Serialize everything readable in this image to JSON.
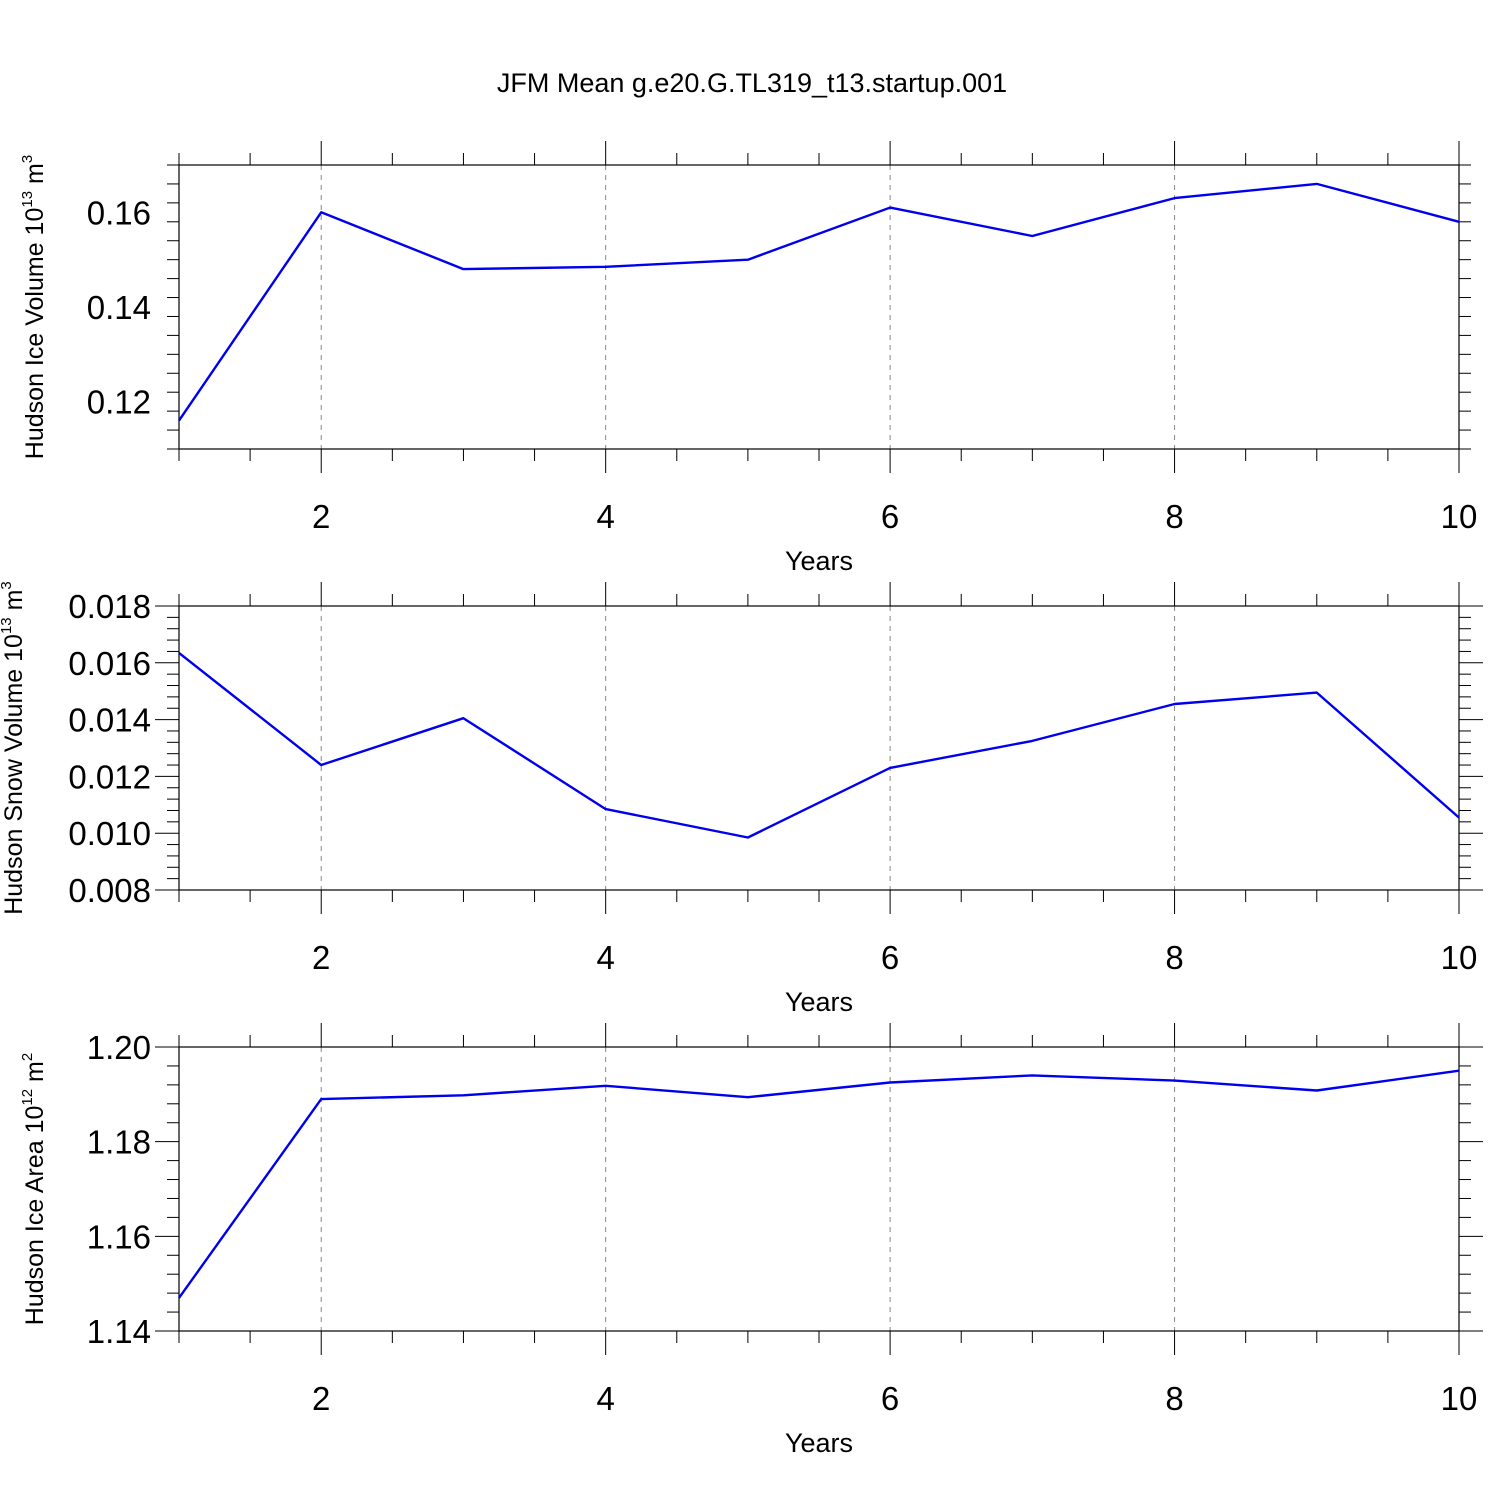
{
  "figure": {
    "title": "JFM Mean g.e20.G.TL319_t13.startup.001",
    "line_color": "#0000ee"
  },
  "chart_data": [
    {
      "type": "line",
      "title": "JFM Mean g.e20.G.TL319_t13.startup.001",
      "xlabel": "Years",
      "ylabel": {
        "base": "Hudson Ice Volume 10",
        "exponent": "13",
        "unit": " m",
        "unit_exp": "3"
      },
      "xlim": [
        1,
        10
      ],
      "ylim": [
        0.11,
        0.17
      ],
      "xticks": [
        2,
        4,
        6,
        8,
        10
      ],
      "xtick_labels": [
        "2",
        "4",
        "6",
        "8",
        "10"
      ],
      "yticks": [
        0.12,
        0.14,
        0.16
      ],
      "ytick_labels": [
        "0.12",
        "0.14",
        "0.16"
      ],
      "grid": "dashed vertical at major x ticks",
      "x": [
        1,
        2,
        3,
        4,
        5,
        6,
        7,
        8,
        9,
        10
      ],
      "series": [
        {
          "name": "Hudson Ice Volume",
          "values": [
            0.116,
            0.16,
            0.148,
            0.1485,
            0.15,
            0.161,
            0.155,
            0.163,
            0.166,
            0.158
          ]
        }
      ]
    },
    {
      "type": "line",
      "xlabel": "Years",
      "ylabel": {
        "base": "Hudson Snow Volume 10",
        "exponent": "13",
        "unit": " m",
        "unit_exp": "3"
      },
      "xlim": [
        1,
        10
      ],
      "ylim": [
        0.008,
        0.018
      ],
      "xticks": [
        2,
        4,
        6,
        8,
        10
      ],
      "xtick_labels": [
        "2",
        "4",
        "6",
        "8",
        "10"
      ],
      "yticks": [
        0.008,
        0.01,
        0.012,
        0.014,
        0.016,
        0.018
      ],
      "ytick_labels": [
        "0.008",
        "0.010",
        "0.012",
        "0.014",
        "0.016",
        "0.018"
      ],
      "grid": "dashed vertical at major x ticks",
      "x": [
        1,
        2,
        3,
        4,
        5,
        6,
        7,
        8,
        9,
        10
      ],
      "series": [
        {
          "name": "Hudson Snow Volume",
          "values": [
            0.01635,
            0.0124,
            0.01405,
            0.01085,
            0.00985,
            0.0123,
            0.01325,
            0.01455,
            0.01495,
            0.01055
          ]
        }
      ]
    },
    {
      "type": "line",
      "xlabel": "Years",
      "ylabel": {
        "base": "Hudson Ice Area 10",
        "exponent": "12",
        "unit": " m",
        "unit_exp": "2"
      },
      "xlim": [
        1,
        10
      ],
      "ylim": [
        1.14,
        1.2
      ],
      "xticks": [
        2,
        4,
        6,
        8,
        10
      ],
      "xtick_labels": [
        "2",
        "4",
        "6",
        "8",
        "10"
      ],
      "yticks": [
        1.14,
        1.16,
        1.18,
        1.2
      ],
      "ytick_labels": [
        "1.14",
        "1.16",
        "1.18",
        "1.20"
      ],
      "grid": "dashed vertical at major x ticks",
      "x": [
        1,
        2,
        3,
        4,
        5,
        6,
        7,
        8,
        9,
        10
      ],
      "series": [
        {
          "name": "Hudson Ice Area",
          "values": [
            1.147,
            1.189,
            1.1898,
            1.1918,
            1.1894,
            1.1925,
            1.194,
            1.1929,
            1.1908,
            1.195
          ]
        }
      ]
    }
  ]
}
